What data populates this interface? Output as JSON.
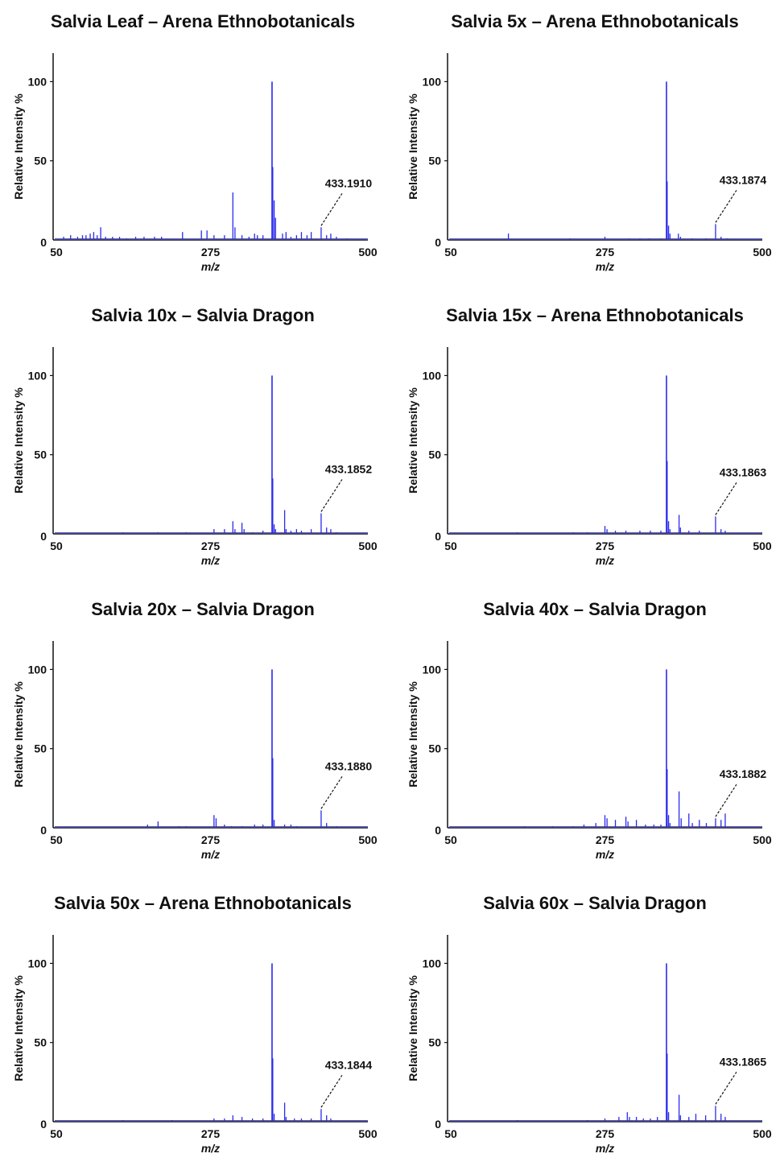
{
  "figure": {
    "ylabel": "Relative Intensity %",
    "xlabel": "m/z",
    "series_color": "#2a2aee",
    "axis_color": "#111111"
  },
  "chart_data": [
    {
      "type": "bar",
      "title": "Salvia Leaf – Arena Ethnobotanicals",
      "xlabel": "m/z",
      "ylabel": "Relative Intensity %",
      "xlim": [
        50,
        500
      ],
      "ylim": [
        0,
        118
      ],
      "xticks": [
        50,
        275,
        500
      ],
      "yticks": [
        0,
        50,
        100
      ],
      "annotation": {
        "label": "433.1910",
        "x": 433.191,
        "y": 8
      },
      "peaks": [
        [
          65,
          2
        ],
        [
          75,
          3
        ],
        [
          85,
          2
        ],
        [
          92,
          3
        ],
        [
          97,
          3
        ],
        [
          103,
          4
        ],
        [
          108,
          5
        ],
        [
          113,
          3
        ],
        [
          118,
          8
        ],
        [
          125,
          2
        ],
        [
          135,
          2
        ],
        [
          145,
          2
        ],
        [
          155,
          1
        ],
        [
          168,
          2
        ],
        [
          180,
          2
        ],
        [
          195,
          2
        ],
        [
          205,
          2
        ],
        [
          235,
          5
        ],
        [
          262,
          6
        ],
        [
          270,
          6
        ],
        [
          280,
          3
        ],
        [
          295,
          3
        ],
        [
          307,
          30
        ],
        [
          310,
          8
        ],
        [
          320,
          3
        ],
        [
          330,
          2
        ],
        [
          338,
          4
        ],
        [
          342,
          3
        ],
        [
          350,
          3
        ],
        [
          363,
          100
        ],
        [
          364,
          46
        ],
        [
          366,
          25
        ],
        [
          368,
          14
        ],
        [
          378,
          4
        ],
        [
          383,
          5
        ],
        [
          390,
          2
        ],
        [
          398,
          3
        ],
        [
          405,
          5
        ],
        [
          413,
          3
        ],
        [
          419,
          5
        ],
        [
          433.191,
          8
        ],
        [
          441,
          3
        ],
        [
          447,
          4
        ],
        [
          455,
          2
        ],
        [
          470,
          1
        ]
      ]
    },
    {
      "type": "bar",
      "title": "Salvia 5x – Arena Ethnobotanicals",
      "xlabel": "m/z",
      "ylabel": "Relative Intensity %",
      "xlim": [
        50,
        500
      ],
      "ylim": [
        0,
        118
      ],
      "xticks": [
        50,
        275,
        500
      ],
      "yticks": [
        0,
        50,
        100
      ],
      "annotation": {
        "label": "433.1874",
        "x": 433.1874,
        "y": 10
      },
      "peaks": [
        [
          137,
          4
        ],
        [
          225,
          1
        ],
        [
          275,
          2
        ],
        [
          310,
          1
        ],
        [
          325,
          1
        ],
        [
          338,
          1
        ],
        [
          355,
          1
        ],
        [
          363,
          100
        ],
        [
          364,
          37
        ],
        [
          366,
          9
        ],
        [
          368,
          4
        ],
        [
          380,
          4
        ],
        [
          383,
          2
        ],
        [
          400,
          1
        ],
        [
          419,
          1
        ],
        [
          433.1874,
          10
        ],
        [
          441,
          2
        ],
        [
          450,
          1
        ]
      ]
    },
    {
      "type": "bar",
      "title": "Salvia 10x – Salvia Dragon",
      "xlabel": "m/z",
      "ylabel": "Relative Intensity %",
      "xlim": [
        50,
        500
      ],
      "ylim": [
        0,
        118
      ],
      "xticks": [
        50,
        275,
        500
      ],
      "yticks": [
        0,
        50,
        100
      ],
      "annotation": {
        "label": "433.1852",
        "x": 433.1852,
        "y": 13
      },
      "peaks": [
        [
          150,
          1
        ],
        [
          200,
          1
        ],
        [
          240,
          1
        ],
        [
          280,
          3
        ],
        [
          295,
          3
        ],
        [
          307,
          8
        ],
        [
          310,
          3
        ],
        [
          320,
          7
        ],
        [
          323,
          3
        ],
        [
          335,
          1
        ],
        [
          350,
          2
        ],
        [
          363,
          100
        ],
        [
          364,
          35
        ],
        [
          366,
          6
        ],
        [
          368,
          3
        ],
        [
          381,
          15
        ],
        [
          383,
          3
        ],
        [
          390,
          2
        ],
        [
          398,
          3
        ],
        [
          405,
          2
        ],
        [
          419,
          3
        ],
        [
          433.1852,
          13
        ],
        [
          441,
          4
        ],
        [
          447,
          3
        ],
        [
          455,
          1
        ]
      ]
    },
    {
      "type": "bar",
      "title": "Salvia 15x – Arena Ethnobotanicals",
      "xlabel": "m/z",
      "ylabel": "Relative Intensity %",
      "xlim": [
        50,
        500
      ],
      "ylim": [
        0,
        118
      ],
      "xticks": [
        50,
        275,
        500
      ],
      "yticks": [
        0,
        50,
        100
      ],
      "annotation": {
        "label": "433.1863",
        "x": 433.1863,
        "y": 11
      },
      "peaks": [
        [
          150,
          1
        ],
        [
          230,
          1
        ],
        [
          250,
          1
        ],
        [
          275,
          5
        ],
        [
          278,
          3
        ],
        [
          290,
          2
        ],
        [
          305,
          2
        ],
        [
          325,
          2
        ],
        [
          340,
          2
        ],
        [
          355,
          2
        ],
        [
          363,
          100
        ],
        [
          364,
          46
        ],
        [
          366,
          8
        ],
        [
          368,
          3
        ],
        [
          381,
          12
        ],
        [
          383,
          4
        ],
        [
          395,
          2
        ],
        [
          410,
          2
        ],
        [
          433.1863,
          11
        ],
        [
          441,
          3
        ],
        [
          447,
          2
        ]
      ]
    },
    {
      "type": "bar",
      "title": "Salvia 20x – Salvia Dragon",
      "xlabel": "m/z",
      "ylabel": "Relative Intensity %",
      "xlim": [
        50,
        500
      ],
      "ylim": [
        0,
        118
      ],
      "xticks": [
        50,
        275,
        500
      ],
      "yticks": [
        0,
        50,
        100
      ],
      "annotation": {
        "label": "433.1880",
        "x": 433.188,
        "y": 11
      },
      "peaks": [
        [
          185,
          2
        ],
        [
          200,
          4
        ],
        [
          230,
          1
        ],
        [
          240,
          1
        ],
        [
          280,
          8
        ],
        [
          283,
          6
        ],
        [
          295,
          2
        ],
        [
          305,
          1
        ],
        [
          320,
          1
        ],
        [
          338,
          2
        ],
        [
          350,
          2
        ],
        [
          363,
          100
        ],
        [
          364,
          44
        ],
        [
          366,
          5
        ],
        [
          381,
          2
        ],
        [
          390,
          2
        ],
        [
          398,
          1
        ],
        [
          433.188,
          11
        ],
        [
          441,
          3
        ],
        [
          455,
          1
        ]
      ]
    },
    {
      "type": "bar",
      "title": "Salvia 40x – Salvia Dragon",
      "xlabel": "m/z",
      "ylabel": "Relative Intensity %",
      "xlim": [
        50,
        500
      ],
      "ylim": [
        0,
        118
      ],
      "xticks": [
        50,
        275,
        500
      ],
      "yticks": [
        0,
        50,
        100
      ],
      "annotation": {
        "label": "433.1882",
        "x": 433.1882,
        "y": 6
      },
      "peaks": [
        [
          160,
          1
        ],
        [
          200,
          1
        ],
        [
          230,
          1
        ],
        [
          245,
          2
        ],
        [
          262,
          3
        ],
        [
          275,
          8
        ],
        [
          278,
          6
        ],
        [
          290,
          5
        ],
        [
          305,
          7
        ],
        [
          308,
          4
        ],
        [
          320,
          5
        ],
        [
          333,
          2
        ],
        [
          345,
          2
        ],
        [
          355,
          2
        ],
        [
          363,
          100
        ],
        [
          364,
          37
        ],
        [
          366,
          8
        ],
        [
          368,
          3
        ],
        [
          381,
          23
        ],
        [
          384,
          6
        ],
        [
          395,
          9
        ],
        [
          400,
          3
        ],
        [
          410,
          5
        ],
        [
          420,
          3
        ],
        [
          433.1882,
          6
        ],
        [
          441,
          5
        ],
        [
          447,
          9
        ]
      ]
    },
    {
      "type": "bar",
      "title": "Salvia 50x – Arena Ethnobotanicals",
      "xlabel": "m/z",
      "ylabel": "Relative Intensity %",
      "xlim": [
        50,
        500
      ],
      "ylim": [
        0,
        118
      ],
      "xticks": [
        50,
        275,
        500
      ],
      "yticks": [
        0,
        50,
        100
      ],
      "annotation": {
        "label": "433.1844",
        "x": 433.1844,
        "y": 8
      },
      "peaks": [
        [
          150,
          1
        ],
        [
          220,
          1
        ],
        [
          280,
          2
        ],
        [
          295,
          2
        ],
        [
          307,
          4
        ],
        [
          320,
          3
        ],
        [
          335,
          2
        ],
        [
          350,
          2
        ],
        [
          363,
          100
        ],
        [
          364,
          40
        ],
        [
          366,
          5
        ],
        [
          381,
          12
        ],
        [
          383,
          3
        ],
        [
          395,
          2
        ],
        [
          405,
          2
        ],
        [
          419,
          2
        ],
        [
          433.1844,
          8
        ],
        [
          441,
          4
        ],
        [
          447,
          2
        ]
      ]
    },
    {
      "type": "bar",
      "title": "Salvia 60x – Salvia Dragon",
      "xlabel": "m/z",
      "ylabel": "Relative Intensity %",
      "xlim": [
        50,
        500
      ],
      "ylim": [
        0,
        118
      ],
      "xticks": [
        50,
        275,
        500
      ],
      "yticks": [
        0,
        50,
        100
      ],
      "annotation": {
        "label": "433.1865",
        "x": 433.1865,
        "y": 10
      },
      "peaks": [
        [
          150,
          1
        ],
        [
          250,
          1
        ],
        [
          275,
          2
        ],
        [
          295,
          3
        ],
        [
          307,
          6
        ],
        [
          310,
          3
        ],
        [
          320,
          3
        ],
        [
          330,
          2
        ],
        [
          340,
          2
        ],
        [
          350,
          3
        ],
        [
          363,
          100
        ],
        [
          364,
          43
        ],
        [
          366,
          6
        ],
        [
          381,
          17
        ],
        [
          383,
          4
        ],
        [
          395,
          3
        ],
        [
          405,
          5
        ],
        [
          419,
          4
        ],
        [
          433.1865,
          10
        ],
        [
          441,
          5
        ],
        [
          447,
          3
        ]
      ]
    }
  ]
}
